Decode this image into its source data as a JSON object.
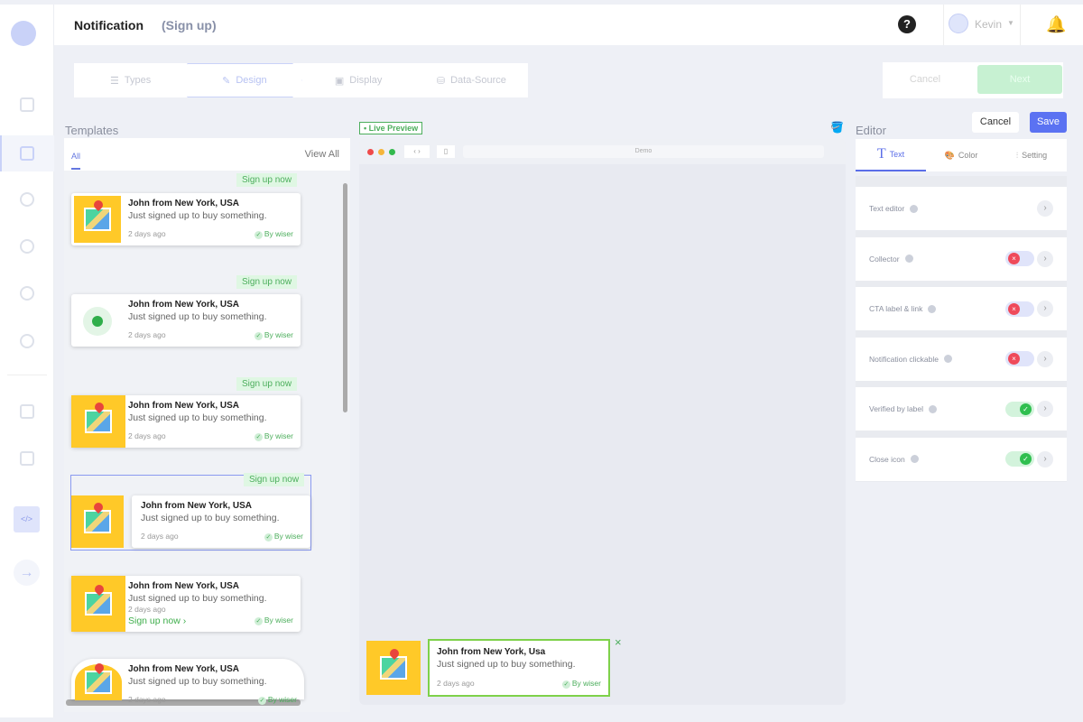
{
  "header": {
    "title": "Notification",
    "subtitle": "(Sign up)",
    "user": "Kevin",
    "help": "?"
  },
  "steps": [
    {
      "label": "Types",
      "icon": "list-icon"
    },
    {
      "label": "Design",
      "icon": "palette-icon"
    },
    {
      "label": "Display",
      "icon": "display-icon"
    },
    {
      "label": "Data-Source",
      "icon": "database-icon"
    }
  ],
  "top_buttons": {
    "cancel": "Cancel",
    "next": "Next"
  },
  "templates": {
    "title": "Templates",
    "tab_all": "All",
    "view_all": "View All",
    "cta": "Sign up now",
    "cta_link": "Sign up now ›",
    "name": "John from New York, USA",
    "text": "Just signed up to buy something.",
    "time": "2 days ago",
    "by": "By wiser"
  },
  "preview": {
    "live": "• Live Preview",
    "url": "Demo",
    "name": "John from New York, Usa",
    "text": "Just signed up to buy something.",
    "time": "2 days ago",
    "by": "By wiser",
    "close": "×"
  },
  "editor": {
    "title": "Editor",
    "cancel": "Cancel",
    "save": "Save",
    "tabs": [
      {
        "label": "Text",
        "icon": "T"
      },
      {
        "label": "Color",
        "icon": "🎨"
      },
      {
        "label": "Setting",
        "icon": "⫶"
      }
    ],
    "rows": [
      {
        "label": "Text editor",
        "toggle": null
      },
      {
        "label": "Collector",
        "toggle": false
      },
      {
        "label": "CTA label & link",
        "toggle": false
      },
      {
        "label": "Notification clickable",
        "toggle": false
      },
      {
        "label": "Verified by label",
        "toggle": true
      },
      {
        "label": "Close icon",
        "toggle": true
      }
    ]
  },
  "colors": {
    "accent": "#5b6ee8",
    "success": "#4cae5c",
    "danger": "#ef4a5a",
    "brand_yellow": "#ffc928"
  }
}
